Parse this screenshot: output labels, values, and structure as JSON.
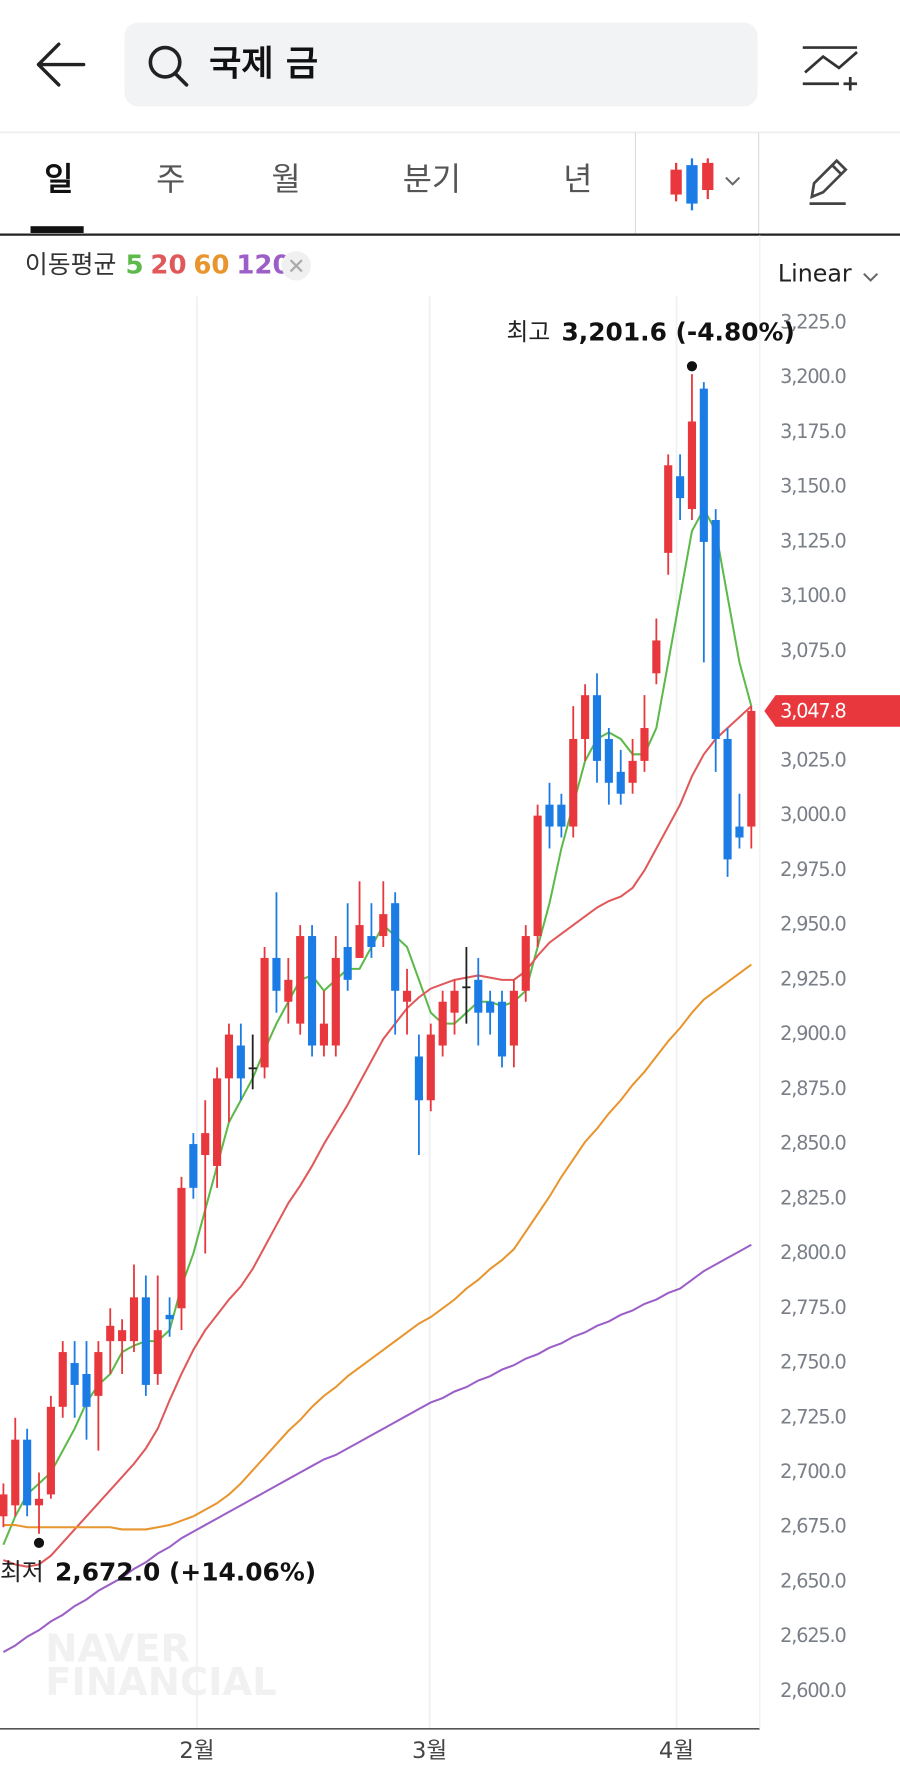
{
  "header": {
    "search": "국제 금"
  },
  "tabs": {
    "items": [
      "일",
      "주",
      "월",
      "분기",
      "년"
    ],
    "selected": 0
  },
  "indicator": {
    "label": "이동평균",
    "scale": "Linear"
  },
  "watermark": [
    "NAVER",
    "FINANCIAL"
  ],
  "chart_data": {
    "type": "candlestick",
    "xlim": [
      -0.286,
      63.714
    ],
    "xticks": [
      {
        "value": 16.3,
        "label": "2월"
      },
      {
        "value": 35.9,
        "label": "3월"
      },
      {
        "value": 56.7,
        "label": "4월"
      }
    ],
    "ylim": [
      2585,
      3235
    ],
    "yticks": [
      {
        "value": 2600,
        "label": "2,600.0"
      },
      {
        "value": 2625,
        "label": "2,625.0"
      },
      {
        "value": 2650,
        "label": "2,650.0"
      },
      {
        "value": 2675,
        "label": "2,675.0"
      },
      {
        "value": 2700,
        "label": "2,700.0"
      },
      {
        "value": 2725,
        "label": "2,725.0"
      },
      {
        "value": 2750,
        "label": "2,750.0"
      },
      {
        "value": 2775,
        "label": "2,775.0"
      },
      {
        "value": 2800,
        "label": "2,800.0"
      },
      {
        "value": 2825,
        "label": "2,825.0"
      },
      {
        "value": 2850,
        "label": "2,850.0"
      },
      {
        "value": 2875,
        "label": "2,875.0"
      },
      {
        "value": 2900,
        "label": "2,900.0"
      },
      {
        "value": 2925,
        "label": "2,925.0"
      },
      {
        "value": 2950,
        "label": "2,950.0"
      },
      {
        "value": 2975,
        "label": "2,975.0"
      },
      {
        "value": 3000,
        "label": "3,000.0"
      },
      {
        "value": 3025,
        "label": "3,025.0"
      },
      {
        "value": 3050,
        "label": "3,050.0"
      },
      {
        "value": 3075,
        "label": "3,075.0"
      },
      {
        "value": 3100,
        "label": "3,100.0"
      },
      {
        "value": 3125,
        "label": "3,125.0"
      },
      {
        "value": 3150,
        "label": "3,150.0"
      },
      {
        "value": 3175,
        "label": "3,175.0"
      },
      {
        "value": 3200,
        "label": "3,200.0"
      },
      {
        "value": 3225,
        "label": "3,225.0"
      }
    ],
    "up_color": "#e8383d",
    "down_color": "#1c7ce6",
    "open": [
      2680,
      2685,
      2715,
      2685,
      2690,
      2730,
      2750,
      2745,
      2735,
      2760,
      2760,
      2760,
      2780,
      2745,
      2772,
      2775,
      2850,
      2845,
      2840,
      2880,
      2895,
      2885,
      2885,
      2935,
      2915,
      2905,
      2945,
      2895,
      2895,
      2940,
      2935,
      2945,
      2945,
      2960,
      2915,
      2890,
      2870,
      2895,
      2910,
      2922,
      2925,
      2915,
      2915,
      2895,
      2920,
      2945,
      3005,
      3005,
      2995,
      3035,
      3055,
      3035,
      3020,
      3015,
      3025,
      3065,
      3120,
      3155,
      3140,
      3195,
      3135,
      3035,
      2995,
      2995
    ],
    "high": [
      2695,
      2725,
      2720,
      2700,
      2735,
      2760,
      2760,
      2760,
      2760,
      2775,
      2770,
      2795,
      2790,
      2790,
      2780,
      2835,
      2855,
      2870,
      2885,
      2905,
      2905,
      2900,
      2940,
      2965,
      2935,
      2950,
      2950,
      2920,
      2945,
      2960,
      2970,
      2960,
      2970,
      2965,
      2930,
      2900,
      2905,
      2920,
      2925,
      2940,
      2935,
      2920,
      2920,
      2925,
      2950,
      3005,
      3015,
      3010,
      3050,
      3060,
      3065,
      3040,
      3030,
      3035,
      3055,
      3090,
      3165,
      3165,
      3201.6,
      3198,
      3140,
      3040,
      3010,
      3050
    ],
    "low": [
      2675,
      2680,
      2680,
      2672,
      2688,
      2725,
      2725,
      2715,
      2710,
      2745,
      2745,
      2755,
      2735,
      2740,
      2762,
      2765,
      2825,
      2800,
      2830,
      2860,
      2870,
      2875,
      2880,
      2910,
      2905,
      2900,
      2890,
      2890,
      2890,
      2920,
      2935,
      2935,
      2940,
      2900,
      2900,
      2845,
      2865,
      2890,
      2900,
      2905,
      2895,
      2900,
      2885,
      2885,
      2915,
      2940,
      2985,
      2990,
      2990,
      3025,
      3015,
      3005,
      3005,
      3010,
      3020,
      3060,
      3110,
      3135,
      3135,
      3070,
      3020,
      2972,
      2985,
      2985
    ],
    "close": [
      2690,
      2715,
      2685,
      2688,
      2730,
      2755,
      2740,
      2730,
      2755,
      2767,
      2765,
      2780,
      2740,
      2765,
      2770,
      2830,
      2830,
      2855,
      2880,
      2900,
      2880,
      2885,
      2935,
      2920,
      2925,
      2945,
      2895,
      2905,
      2935,
      2925,
      2950,
      2940,
      2955,
      2920,
      2920,
      2870,
      2900,
      2915,
      2920,
      2922,
      2910,
      2910,
      2890,
      2920,
      2945,
      3000,
      2995,
      2995,
      3035,
      3055,
      3025,
      3015,
      3010,
      3025,
      3040,
      3080,
      3160,
      3145,
      3180,
      3125,
      3035,
      2980,
      2990,
      3047.8
    ],
    "series": [
      {
        "name": "5",
        "color": "#5cb94a",
        "values": [
          2667,
          2680,
          2690,
          2695,
          2700,
          2710,
          2720,
          2732,
          2740,
          2745,
          2755,
          2758,
          2760,
          2760,
          2765,
          2785,
          2800,
          2820,
          2840,
          2860,
          2870,
          2880,
          2893,
          2905,
          2915,
          2925,
          2927,
          2920,
          2925,
          2930,
          2930,
          2940,
          2950,
          2945,
          2940,
          2925,
          2910,
          2905,
          2905,
          2910,
          2915,
          2915,
          2913,
          2915,
          2920,
          2940,
          2960,
          2985,
          3005,
          3025,
          3035,
          3038,
          3035,
          3028,
          3028,
          3040,
          3070,
          3100,
          3130,
          3140,
          3130,
          3100,
          3070,
          3050
        ]
      },
      {
        "name": "20",
        "color": "#e0585a",
        "values": [
          2660,
          2658,
          2657,
          2658,
          2662,
          2668,
          2674,
          2680,
          2686,
          2692,
          2698,
          2704,
          2711,
          2720,
          2733,
          2745,
          2756,
          2765,
          2772,
          2779,
          2785,
          2793,
          2803,
          2813,
          2823,
          2831,
          2840,
          2850,
          2859,
          2868,
          2878,
          2888,
          2898,
          2905,
          2912,
          2917,
          2921,
          2923,
          2925,
          2926,
          2927,
          2926,
          2925,
          2925,
          2929,
          2936,
          2942,
          2946,
          2950,
          2954,
          2958,
          2961,
          2963,
          2967,
          2975,
          2985,
          2995,
          3005,
          3018,
          3028,
          3035,
          3040,
          3045,
          3050
        ]
      },
      {
        "name": "60",
        "color": "#e8952e",
        "values": [
          2676,
          2676,
          2675,
          2675,
          2675,
          2675,
          2675,
          2675,
          2675,
          2675,
          2674,
          2674,
          2674,
          2675,
          2676,
          2678,
          2680,
          2683,
          2686,
          2690,
          2695,
          2701,
          2707,
          2713,
          2719,
          2724,
          2730,
          2735,
          2739,
          2744,
          2748,
          2752,
          2756,
          2760,
          2764,
          2768,
          2771,
          2775,
          2779,
          2784,
          2788,
          2793,
          2797,
          2802,
          2810,
          2818,
          2826,
          2835,
          2843,
          2851,
          2857,
          2864,
          2870,
          2877,
          2883,
          2890,
          2897,
          2903,
          2910,
          2916,
          2920,
          2924,
          2928,
          2932
        ]
      },
      {
        "name": "120",
        "color": "#9b5fc7",
        "values": [
          2618,
          2621,
          2625,
          2628,
          2632,
          2635,
          2639,
          2642,
          2646,
          2649,
          2652,
          2656,
          2659,
          2663,
          2666,
          2670,
          2673,
          2676,
          2679,
          2682,
          2685,
          2688,
          2691,
          2694,
          2697,
          2700,
          2703,
          2706,
          2708,
          2711,
          2714,
          2717,
          2720,
          2723,
          2726,
          2729,
          2732,
          2734,
          2737,
          2739,
          2742,
          2744,
          2747,
          2749,
          2752,
          2754,
          2757,
          2759,
          2762,
          2764,
          2767,
          2769,
          2772,
          2774,
          2777,
          2779,
          2782,
          2784,
          2788,
          2792,
          2795,
          2798,
          2801,
          2804
        ]
      }
    ],
    "last_price": {
      "value": 3047.8,
      "label": "3,047.8",
      "color": "#e8383d"
    },
    "annotations": [
      {
        "label": "최고",
        "value": 3201.6,
        "text": "3,201.6 (-4.80%)",
        "index": 58
      },
      {
        "label": "최저",
        "value": 2672.0,
        "text": "2,672.0 (+14.06%)",
        "index": 3
      }
    ],
    "grid": true
  }
}
